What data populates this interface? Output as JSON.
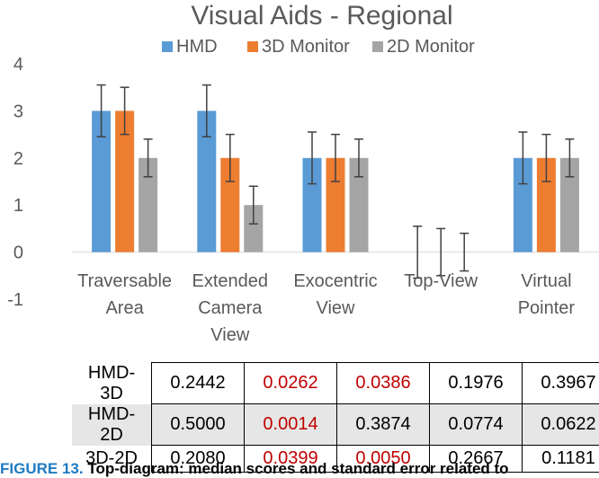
{
  "chart_data": {
    "type": "bar",
    "title": "Visual Aids - Regional",
    "categories": [
      [
        "Traversable",
        "Area"
      ],
      [
        "Extended",
        "Camera",
        "View"
      ],
      [
        "Exocentric",
        "View"
      ],
      [
        "Top-View"
      ],
      [
        "Virtual",
        "Pointer"
      ]
    ],
    "series": [
      {
        "name": "HMD",
        "color": "#5b9bd5",
        "values": [
          3,
          3,
          2,
          0,
          2
        ],
        "err": [
          0.55,
          0.55,
          0.55,
          0.55,
          0.55
        ]
      },
      {
        "name": "3D Monitor",
        "color": "#ed7d31",
        "values": [
          3,
          2,
          2,
          0,
          2
        ],
        "err": [
          0.5,
          0.5,
          0.5,
          0.5,
          0.5
        ]
      },
      {
        "name": "2D Monitor",
        "color": "#a5a5a5",
        "values": [
          2,
          1,
          2,
          0,
          2
        ],
        "err": [
          0.4,
          0.4,
          0.4,
          0.4,
          0.4
        ]
      }
    ],
    "ylim": [
      -1,
      4
    ],
    "yticks": [
      4,
      3,
      2,
      1,
      0,
      -1
    ],
    "legend": "top",
    "grid": false
  },
  "table": {
    "rows": [
      {
        "label": "HMD-3D",
        "shaded": false,
        "values": [
          "0.2442",
          "0.0262",
          "0.0386",
          "0.1976",
          "0.3967"
        ],
        "significant": [
          false,
          true,
          true,
          false,
          false
        ]
      },
      {
        "label": "HMD-2D",
        "shaded": true,
        "values": [
          "0.5000",
          "0.0014",
          "0.3874",
          "0.0774",
          "0.0622"
        ],
        "significant": [
          false,
          true,
          false,
          false,
          false
        ]
      },
      {
        "label": "3D-2D",
        "shaded": false,
        "values": [
          "0.2080",
          "0.0399",
          "0.0050",
          "0.2667",
          "0.1181"
        ],
        "significant": [
          false,
          true,
          true,
          false,
          false
        ]
      }
    ],
    "significant_color": "#c00000"
  },
  "caption": {
    "figure_label": "FIGURE 13.",
    "text": "Top-diagram: median scores and standard error related to"
  }
}
